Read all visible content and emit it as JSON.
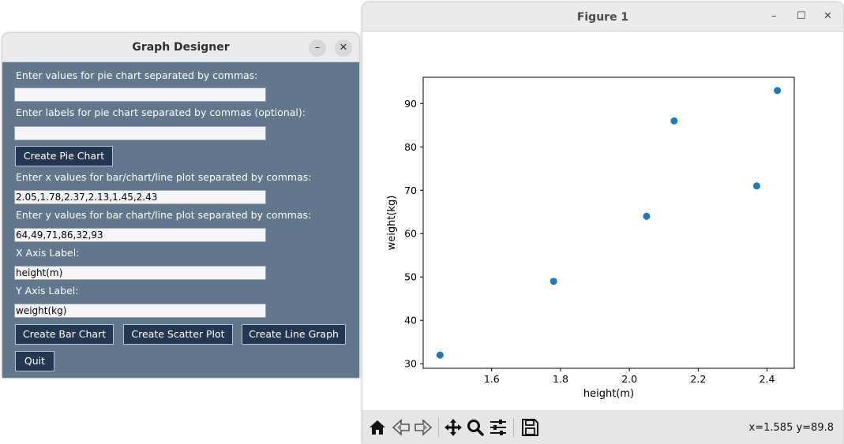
{
  "graph_designer": {
    "title": "Graph Designer",
    "minimize_symbol": "–",
    "close_symbol": "✕",
    "pie_values_label": "Enter values for pie chart separated by commas:",
    "pie_values_value": "",
    "pie_labels_label": "Enter labels for pie chart separated by commas (optional):",
    "pie_labels_value": "",
    "create_pie_button": "Create Pie Chart",
    "x_values_label": "Enter x values for bar/chart/line plot separated by commas:",
    "x_values_value": "2.05,1.78,2.37,2.13,1.45,2.43",
    "y_values_label": "Enter y values for bar chart/line plot separated by commas:",
    "y_values_value": "64,49,71,86,32,93",
    "x_axis_label_label": "X Axis Label:",
    "x_axis_label_value": "height(m)",
    "y_axis_label_label": "Y Axis Label:",
    "y_axis_label_value": "weight(kg)",
    "create_bar_button": "Create Bar Chart",
    "create_scatter_button": "Create Scatter Plot",
    "create_line_button": "Create Line Graph",
    "quit_button": "Quit"
  },
  "figure": {
    "title": "Figure 1",
    "minimize_symbol": "–",
    "maximize_symbol": "☐",
    "close_symbol": "✕",
    "coordinates": "x=1.585 y=89.8",
    "toolbar_icons": [
      "home-icon",
      "back-arrow-icon",
      "forward-arrow-icon",
      "pan-icon",
      "zoom-icon",
      "configure-subplots-icon",
      "save-icon"
    ]
  },
  "chart_data": {
    "type": "scatter",
    "x": [
      2.05,
      1.78,
      2.37,
      2.13,
      1.45,
      2.43
    ],
    "y": [
      64,
      49,
      71,
      86,
      32,
      93
    ],
    "xlabel": "height(m)",
    "ylabel": "weight(kg)",
    "xlim": [
      1.401,
      2.479
    ],
    "ylim": [
      28.95,
      96.05
    ],
    "xticks": [
      1.6,
      1.8,
      2.0,
      2.2,
      2.4
    ],
    "xtick_labels": [
      "1.6",
      "1.8",
      "2.0",
      "2.2",
      "2.4"
    ],
    "yticks": [
      30,
      40,
      50,
      60,
      70,
      80,
      90
    ],
    "ytick_labels": [
      "30",
      "40",
      "50",
      "60",
      "70",
      "80",
      "90"
    ],
    "marker_color": "#1f77b4",
    "grid": false
  }
}
